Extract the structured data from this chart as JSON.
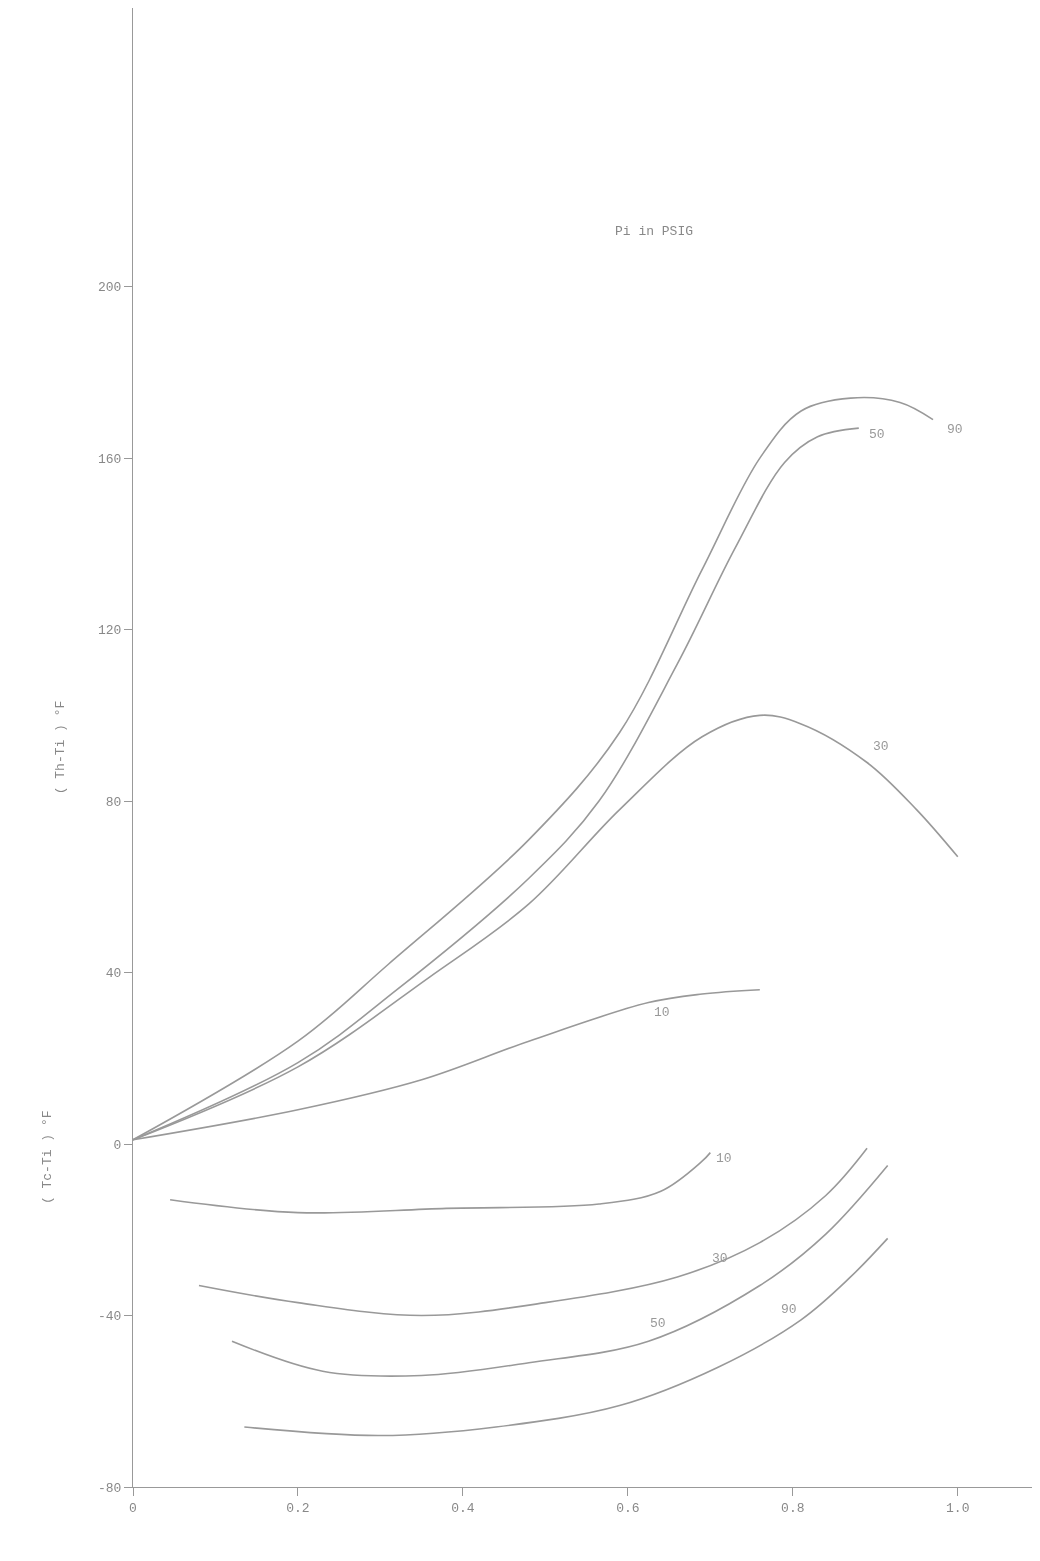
{
  "chart_data": {
    "type": "line",
    "xlabel": null,
    "ylabel": "( Th-Ti ) °F",
    "xlim": [
      0,
      1.09
    ],
    "ylim": [
      -80,
      265
    ],
    "xticks": [
      0,
      0.2,
      0.4,
      0.6,
      0.8,
      {
        "value": 1.0,
        "label": "1.0"
      }
    ],
    "yticks": [
      -80,
      -40,
      0,
      40,
      80,
      120,
      160,
      200
    ],
    "legend": false,
    "marker": "none",
    "line_style": "solid",
    "series": [
      {
        "name": "90",
        "color": "#999999",
        "x": [
          0,
          0.2,
          0.31,
          0.48,
          0.59,
          0.69,
          0.76,
          0.81,
          0.87,
          0.93,
          0.97
        ],
        "values": [
          1,
          24,
          42,
          71,
          96,
          134,
          160,
          171,
          174,
          173,
          169
        ]
      },
      {
        "name": "50",
        "color": "#999999",
        "x": [
          0,
          0.2,
          0.32,
          0.48,
          0.565,
          0.66,
          0.73,
          0.79,
          0.83,
          0.88
        ],
        "values": [
          1,
          19,
          36,
          62,
          80,
          112,
          139,
          159,
          165,
          167
        ]
      },
      {
        "name": "30",
        "color": "#999999",
        "x": [
          0,
          0.2,
          0.36,
          0.48,
          0.59,
          0.69,
          0.76,
          0.81,
          0.89,
          0.95,
          1.0
        ],
        "values": [
          1,
          18,
          39,
          56,
          78,
          95,
          100,
          98,
          89,
          78,
          67
        ]
      },
      {
        "name": "10",
        "color": "#999999",
        "x": [
          0,
          0.2,
          0.35,
          0.48,
          0.625,
          0.69,
          0.76
        ],
        "values": [
          1,
          8,
          15,
          24,
          33,
          35,
          36
        ]
      },
      {
        "name": "10",
        "color": "#999999",
        "x": [
          0.045,
          0.2,
          0.38,
          0.565,
          0.64,
          0.69,
          0.7
        ],
        "values": [
          -13,
          -16,
          -15,
          -14,
          -11,
          -4,
          -2
        ]
      },
      {
        "name": "30",
        "color": "#999999",
        "x": [
          0.08,
          0.2,
          0.35,
          0.5,
          0.66,
          0.76,
          0.84,
          0.89
        ],
        "values": [
          -33,
          -37,
          -40,
          -37,
          -31,
          -23,
          -12,
          -1
        ]
      },
      {
        "name": "50",
        "color": "#999999",
        "x": [
          0.12,
          0.23,
          0.35,
          0.48,
          0.625,
          0.76,
          0.84,
          0.915
        ],
        "values": [
          -46,
          -53,
          -54,
          -51,
          -46,
          -33,
          -21,
          -5
        ]
      },
      {
        "name": "90",
        "color": "#999999",
        "x": [
          0.135,
          0.3,
          0.44,
          0.59,
          0.71,
          0.81,
          0.87,
          0.915
        ],
        "values": [
          -66,
          -68,
          -66,
          -61,
          -52,
          -41,
          -31,
          -22
        ]
      }
    ],
    "annotations": [
      "Pi in PSIG",
      "( Tc-Ti ) °F"
    ]
  }
}
